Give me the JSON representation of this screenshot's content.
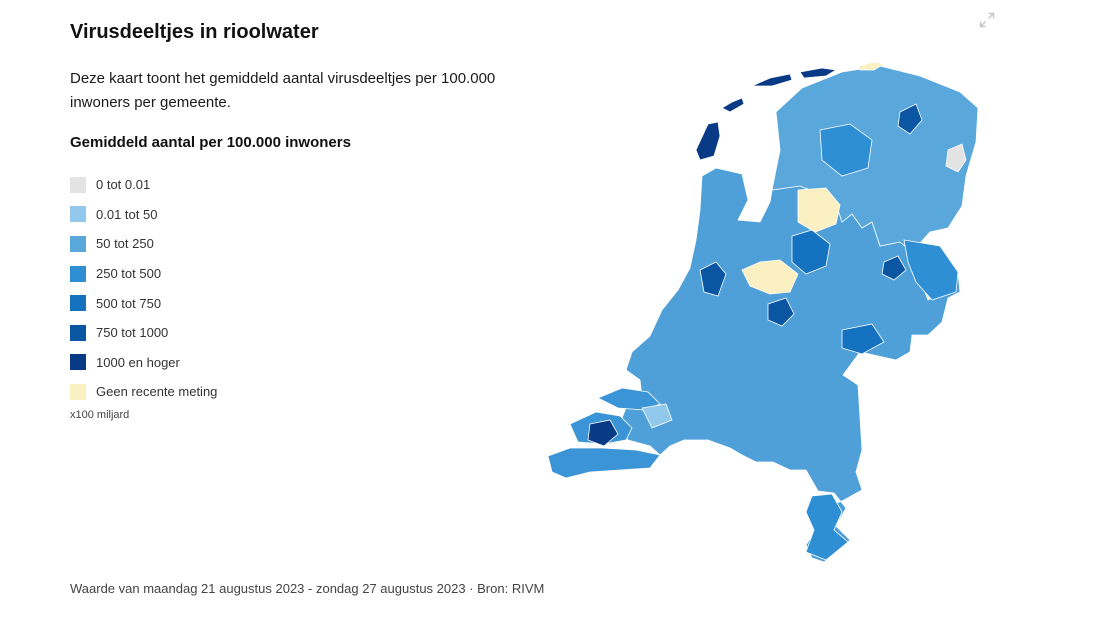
{
  "title": "Virusdeeltjes in rioolwater",
  "description": "Deze kaart toont het gemiddeld aantal virusdeeltjes per 100.000 inwoners per gemeente.",
  "legend": {
    "title": "Gemiddeld aantal per 100.000 inwoners",
    "items": [
      {
        "label": "0 tot 0.01",
        "color": "#e3e3e3"
      },
      {
        "label": "0.01 tot 50",
        "color": "#92c8ec"
      },
      {
        "label": "50 tot 250",
        "color": "#5aa7dc"
      },
      {
        "label": "250 tot 500",
        "color": "#2e8fd4"
      },
      {
        "label": "500 tot 750",
        "color": "#1572c0"
      },
      {
        "label": "750 tot 1000",
        "color": "#0b56a3"
      },
      {
        "label": "1000 en hoger",
        "color": "#083a86"
      },
      {
        "label": "Geen recente meting",
        "color": "#fbf0c1"
      }
    ],
    "unit": "x100 miljard"
  },
  "footer": "Waarde van maandag 21 augustus 2023 - zondag 27 augustus 2023 · Bron: RIVM",
  "controls": {
    "expand_icon": "expand-icon"
  }
}
